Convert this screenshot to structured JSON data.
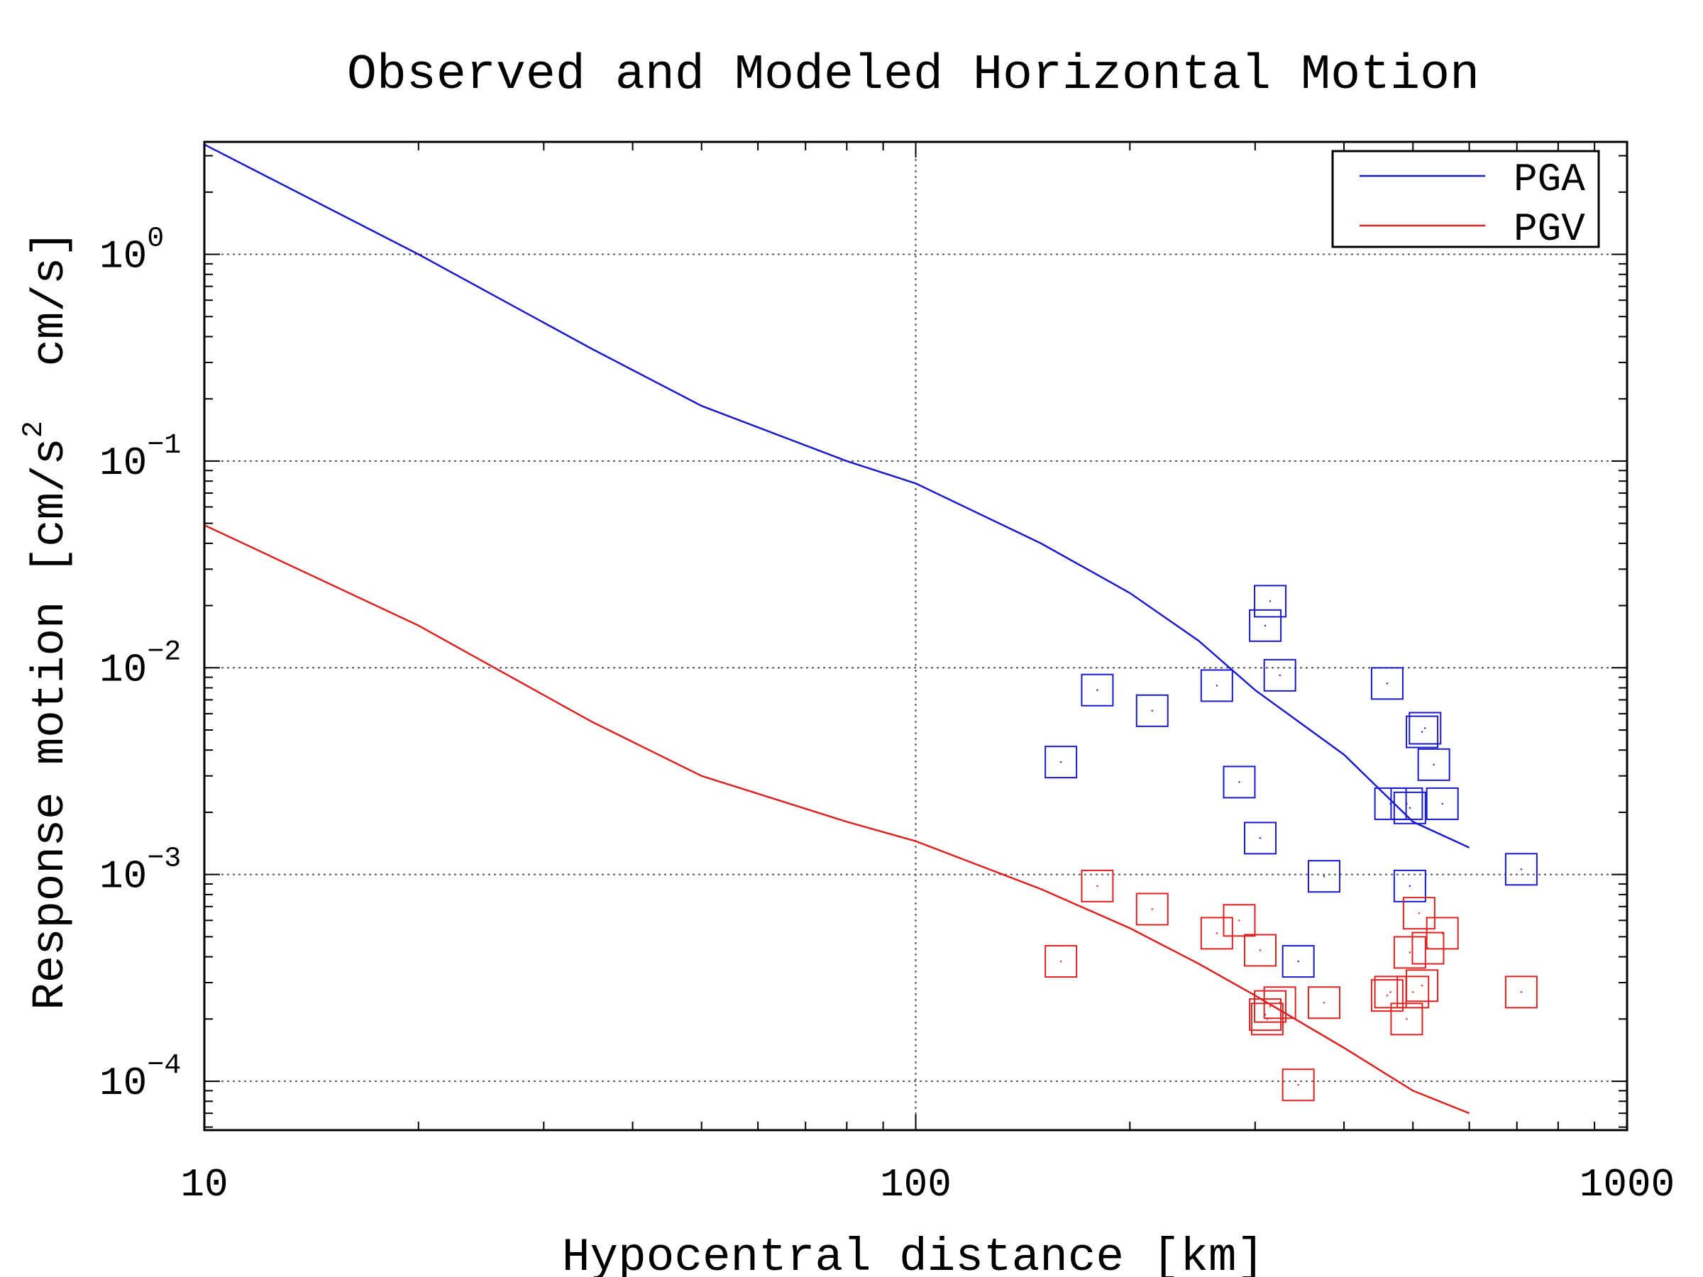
{
  "chart_data": {
    "type": "scatter",
    "title": "Observed and Modeled Horizontal Motion",
    "xlabel": "Hypocentral distance [km]",
    "ylabel": "Response motion [cm/s²  cm/s]",
    "ylabel_prefix": "Response motion [cm/s",
    "ylabel_sup": "2",
    "ylabel_suffix": "  cm/s]",
    "xscale": "log",
    "yscale": "log",
    "xlim": [
      10,
      1000
    ],
    "ylim": [
      5.8e-05,
      3.5
    ],
    "x_ticks": [
      {
        "value": 10,
        "label": "10"
      },
      {
        "value": 100,
        "label": "100"
      },
      {
        "value": 1000,
        "label": "1000"
      }
    ],
    "y_ticks": [
      {
        "value": 0.0001,
        "base": "10",
        "exp": "−4"
      },
      {
        "value": 0.001,
        "base": "10",
        "exp": "−3"
      },
      {
        "value": 0.01,
        "base": "10",
        "exp": "−2"
      },
      {
        "value": 0.1,
        "base": "10",
        "exp": "−1"
      },
      {
        "value": 1,
        "base": "10",
        "exp": "0"
      }
    ],
    "grid": true,
    "legend_position": "top-right",
    "colors": {
      "pga": "#1a1acc",
      "pgv": "#dd2222"
    },
    "series": [
      {
        "name": "PGA",
        "kind": "line",
        "color": "#1a1acc",
        "x": [
          10,
          20,
          35,
          50,
          80,
          100,
          150,
          200,
          250,
          300,
          400,
          500,
          600
        ],
        "y": [
          3.4,
          1.0,
          0.35,
          0.185,
          0.1,
          0.078,
          0.04,
          0.023,
          0.0135,
          0.0078,
          0.0038,
          0.0018,
          0.00135
        ]
      },
      {
        "name": "PGV",
        "kind": "line",
        "color": "#dd2222",
        "x": [
          10,
          20,
          35,
          50,
          80,
          100,
          150,
          200,
          250,
          300,
          400,
          500,
          600
        ],
        "y": [
          0.049,
          0.016,
          0.0055,
          0.003,
          0.0018,
          0.00145,
          0.00085,
          0.00055,
          0.00037,
          0.00026,
          0.000145,
          9e-05,
          7e-05
        ]
      },
      {
        "name": "PGA observed",
        "kind": "markers",
        "color": "#1a1acc",
        "x": [
          160,
          180,
          215,
          265,
          285,
          305,
          310,
          315,
          325,
          345,
          375,
          460,
          465,
          490,
          495,
          495,
          515,
          520,
          535,
          550,
          710
        ],
        "y": [
          0.0035,
          0.0078,
          0.0062,
          0.0082,
          0.0028,
          0.0015,
          0.016,
          0.021,
          0.0092,
          0.00038,
          0.00098,
          0.0084,
          0.0022,
          0.0022,
          0.0021,
          0.00088,
          0.0049,
          0.0051,
          0.0034,
          0.0022,
          0.00106
        ]
      },
      {
        "name": "PGV observed",
        "kind": "markers",
        "color": "#dd2222",
        "x": [
          160,
          180,
          215,
          265,
          285,
          305,
          310,
          312,
          315,
          325,
          345,
          375,
          460,
          465,
          490,
          495,
          500,
          510,
          515,
          525,
          550,
          710
        ],
        "y": [
          0.00038,
          0.00088,
          0.00068,
          0.00052,
          0.0006,
          0.00043,
          0.00021,
          0.0002,
          0.00023,
          0.00024,
          9.6e-05,
          0.00024,
          0.00026,
          0.00027,
          0.0002,
          0.00042,
          0.00027,
          0.00065,
          0.00029,
          0.00044,
          0.00052,
          0.00027
        ]
      }
    ]
  }
}
